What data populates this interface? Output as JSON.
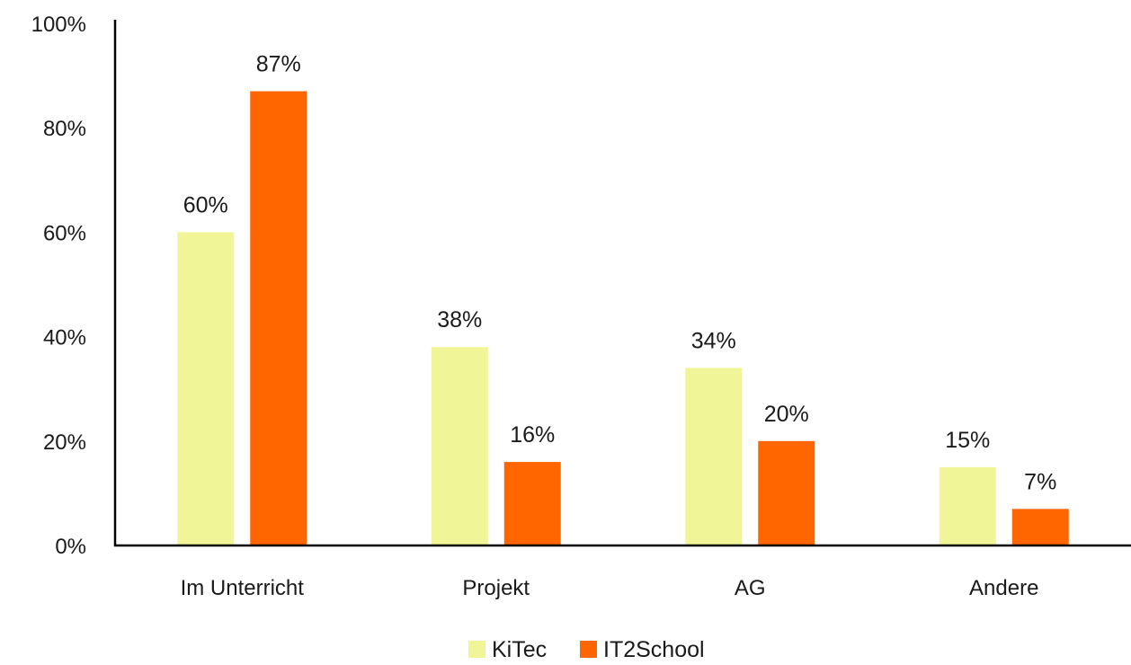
{
  "chart_data": {
    "type": "bar",
    "categories": [
      "Im Unterricht",
      "Projekt",
      "AG",
      "Andere"
    ],
    "series": [
      {
        "name": "KiTec",
        "values": [
          60,
          38,
          34,
          15
        ],
        "labels": [
          "60%",
          "38%",
          "34%",
          "15%"
        ],
        "color": "#f0f597"
      },
      {
        "name": "IT2School",
        "values": [
          87,
          16,
          20,
          7
        ],
        "labels": [
          "87%",
          "16%",
          "20%",
          "7%"
        ],
        "color": "#ff6600"
      }
    ],
    "ylim": [
      0,
      100
    ],
    "yticks": [
      {
        "value": 0,
        "label": "0%"
      },
      {
        "value": 20,
        "label": "20%"
      },
      {
        "value": 40,
        "label": "40%"
      },
      {
        "value": 60,
        "label": "60%"
      },
      {
        "value": 80,
        "label": "80%"
      },
      {
        "value": 100,
        "label": "100%"
      }
    ],
    "legend": "bottom-center",
    "grid": false,
    "axis_color": "#000000"
  }
}
